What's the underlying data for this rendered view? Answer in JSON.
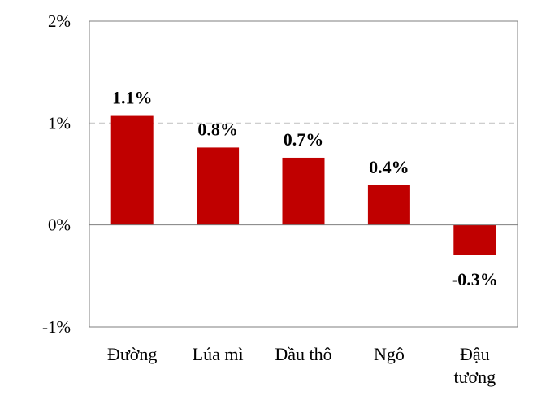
{
  "chart_data": {
    "type": "bar",
    "categories": [
      [
        "Đường"
      ],
      [
        "Lúa mì"
      ],
      [
        "Dầu thô"
      ],
      [
        "Ngô"
      ],
      [
        "Đậu",
        "tương"
      ]
    ],
    "values": [
      1.07,
      0.76,
      0.66,
      0.39,
      -0.29
    ],
    "data_labels": [
      "1.1%",
      "0.8%",
      "0.7%",
      "0.4%",
      "-0.3%"
    ],
    "ylim": [
      -1,
      2
    ],
    "y_ticks": [
      2,
      1,
      0,
      -1
    ],
    "y_tick_labels": [
      "2%",
      "1%",
      "0%",
      "-1%"
    ],
    "bar_color": "#c00000",
    "gridline": {
      "value": 1,
      "style": "dashed",
      "color": "#c8c8c8"
    },
    "legend": "none"
  }
}
